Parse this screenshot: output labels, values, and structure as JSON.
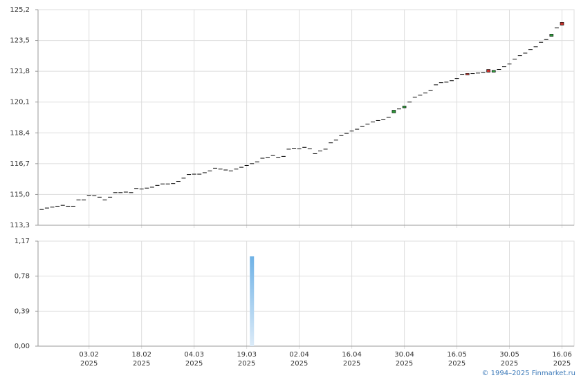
{
  "chart_data": [
    {
      "type": "candlestick",
      "xlim": [
        -0.7,
        101.3
      ],
      "ylim": [
        113.3,
        125.2
      ],
      "yticks": [
        {
          "value": 113.3,
          "label": "113,3"
        },
        {
          "value": 115.0,
          "label": "115,0"
        },
        {
          "value": 116.7,
          "label": "116,7"
        },
        {
          "value": 118.4,
          "label": "118,4"
        },
        {
          "value": 120.1,
          "label": "120,1"
        },
        {
          "value": 121.8,
          "label": "121,8"
        },
        {
          "value": 123.5,
          "label": "123,5"
        },
        {
          "value": 125.2,
          "label": "125,2"
        }
      ],
      "grid": true,
      "color": "#000000",
      "up_color": "#2e9a3a",
      "down_color": "#c0302a",
      "open": [
        114.17,
        114.25,
        114.3,
        114.35,
        114.4,
        114.35,
        114.35,
        114.7,
        114.7,
        114.95,
        114.93,
        114.85,
        114.7,
        114.85,
        115.1,
        115.1,
        115.13,
        115.1,
        115.33,
        115.3,
        115.35,
        115.4,
        115.5,
        115.58,
        115.58,
        115.6,
        115.72,
        115.9,
        116.1,
        116.12,
        116.12,
        116.2,
        116.3,
        116.45,
        116.4,
        116.35,
        116.3,
        116.4,
        116.5,
        116.6,
        116.7,
        116.8,
        117.0,
        117.05,
        117.15,
        117.05,
        117.1,
        117.5,
        117.55,
        117.52,
        117.6,
        117.52,
        117.25,
        117.4,
        117.5,
        117.85,
        118.0,
        118.25,
        118.37,
        118.5,
        118.6,
        118.75,
        118.88,
        119.0,
        119.08,
        119.15,
        119.26,
        119.5,
        119.72,
        119.78,
        120.1,
        120.37,
        120.48,
        120.6,
        120.75,
        121.05,
        121.17,
        121.2,
        121.28,
        121.4,
        121.63,
        121.68,
        121.67,
        121.7,
        121.74,
        121.9,
        121.75,
        121.9,
        122.05,
        122.2,
        122.47,
        122.66,
        122.8,
        123.0,
        123.15,
        123.4,
        123.55,
        123.73,
        124.2,
        124.5
      ],
      "close": [
        114.17,
        114.25,
        114.3,
        114.35,
        114.4,
        114.35,
        114.35,
        114.7,
        114.7,
        114.95,
        114.93,
        114.85,
        114.7,
        114.85,
        115.1,
        115.1,
        115.13,
        115.1,
        115.33,
        115.3,
        115.35,
        115.4,
        115.5,
        115.58,
        115.58,
        115.6,
        115.72,
        115.9,
        116.1,
        116.12,
        116.12,
        116.2,
        116.3,
        116.45,
        116.4,
        116.35,
        116.3,
        116.4,
        116.5,
        116.6,
        116.7,
        116.8,
        117.0,
        117.05,
        117.15,
        117.05,
        117.1,
        117.5,
        117.55,
        117.52,
        117.6,
        117.52,
        117.25,
        117.4,
        117.5,
        117.85,
        118.0,
        118.25,
        118.37,
        118.5,
        118.6,
        118.75,
        118.88,
        119.0,
        119.08,
        119.15,
        119.26,
        119.65,
        119.72,
        119.88,
        120.1,
        120.37,
        120.48,
        120.6,
        120.75,
        121.05,
        121.17,
        121.2,
        121.28,
        121.4,
        121.63,
        121.6,
        121.67,
        121.7,
        121.74,
        121.75,
        121.85,
        121.9,
        122.05,
        122.2,
        122.47,
        122.66,
        122.8,
        123.0,
        123.15,
        123.4,
        123.55,
        123.85,
        124.2,
        124.35
      ]
    },
    {
      "type": "bar",
      "xlim": [
        -0.7,
        101.3
      ],
      "ylim": [
        0,
        1.17
      ],
      "yticks": [
        {
          "value": 0,
          "label": "0,00"
        },
        {
          "value": 0.39,
          "label": "0,39"
        },
        {
          "value": 0.78,
          "label": "0,78"
        },
        {
          "value": 1.17,
          "label": "1,17"
        }
      ],
      "xticks": [
        {
          "value": 9,
          "label": "03.02\n2025"
        },
        {
          "value": 19,
          "label": "18.02\n2025"
        },
        {
          "value": 29,
          "label": "04.03\n2025"
        },
        {
          "value": 39,
          "label": "19.03\n2025"
        },
        {
          "value": 49,
          "label": "02.04\n2025"
        },
        {
          "value": 59,
          "label": "16.04\n2025"
        },
        {
          "value": 69,
          "label": "30.04\n2025"
        },
        {
          "value": 79,
          "label": "16.05\n2025"
        },
        {
          "value": 89,
          "label": "30.05\n2025"
        },
        {
          "value": 99,
          "label": "16.06\n2025"
        }
      ],
      "grid": true,
      "color": "#6fb2e6",
      "values": [
        0,
        0,
        0,
        0,
        0,
        0,
        0,
        0,
        0,
        0,
        0,
        0,
        0,
        0,
        0,
        0,
        0,
        0,
        0,
        0,
        0,
        0,
        0,
        0,
        0,
        0,
        0,
        0,
        0,
        0,
        0,
        0,
        0,
        0,
        0,
        0,
        0,
        0,
        0,
        0,
        1.0,
        0,
        0,
        0,
        0,
        0,
        0,
        0,
        0,
        0,
        0,
        0,
        0,
        0,
        0,
        0,
        0,
        0,
        0,
        0,
        0,
        0,
        0,
        0,
        0,
        0,
        0,
        0,
        0,
        0,
        0,
        0,
        0,
        0,
        0,
        0,
        0,
        0,
        0,
        0,
        0,
        0,
        0,
        0,
        0,
        0,
        0,
        0,
        0,
        0,
        0,
        0,
        0,
        0,
        0,
        0,
        0,
        0,
        0,
        0
      ]
    }
  ],
  "footer": "© 1994–2025 Finmarket.ru"
}
